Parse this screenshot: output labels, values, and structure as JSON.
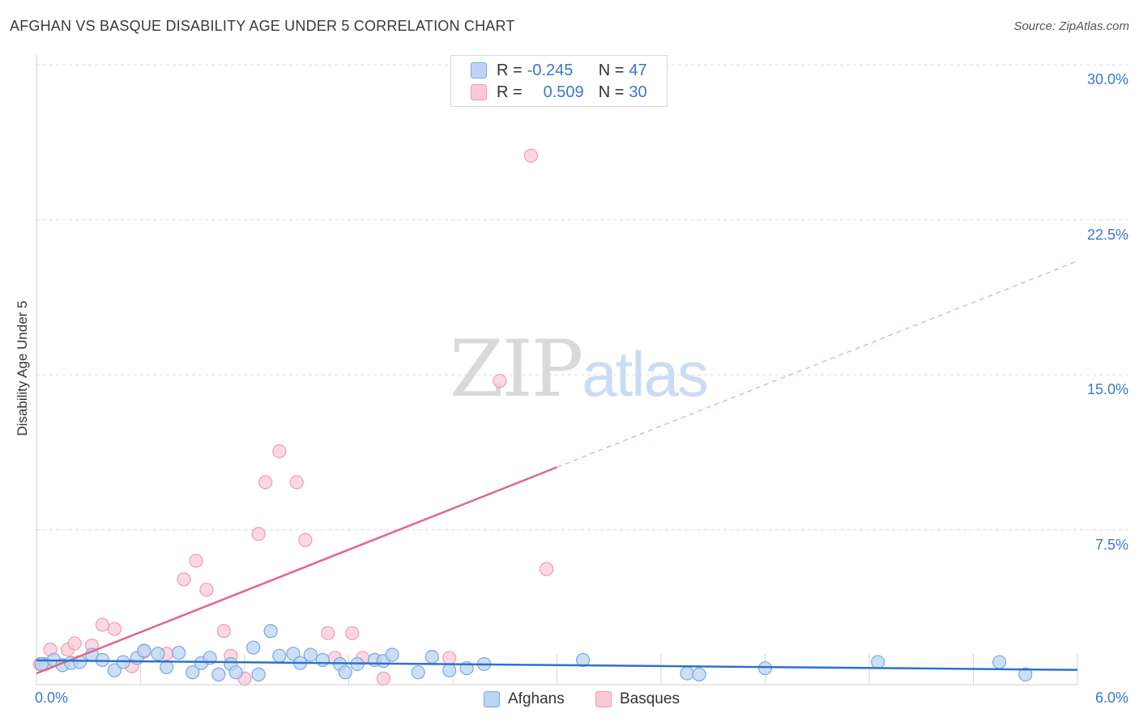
{
  "header": {
    "title": "AFGHAN VS BASQUE DISABILITY AGE UNDER 5 CORRELATION CHART",
    "source": "Source: ZipAtlas.com"
  },
  "legend_top": {
    "rows": [
      {
        "r_label": "R =",
        "r_value": "-0.245",
        "n_label": "N =",
        "n_value": "47"
      },
      {
        "r_label": "R =",
        "r_value": "0.509",
        "n_label": "N =",
        "n_value": "30"
      }
    ]
  },
  "legend_bottom": {
    "items": [
      {
        "label": "Afghans"
      },
      {
        "label": "Basques"
      }
    ]
  },
  "watermark": {
    "zip": "ZIP",
    "atlas": "atlas"
  },
  "colors": {
    "afghans_fill": "#bcd4f4",
    "afghans_stroke": "#7aa7e0",
    "afghans_line": "#2f72c8",
    "basques_fill": "#fbc9d6",
    "basques_stroke": "#ee9ab2",
    "basques_line": "#e06690",
    "tick_text": "#3b78c9"
  },
  "chart_data": {
    "type": "scatter",
    "title": "AFGHAN VS BASQUE DISABILITY AGE UNDER 5 CORRELATION CHART",
    "xlabel": "",
    "ylabel": "Disability Age Under 5",
    "x_tick_labels": [
      "0.0%",
      "6.0%"
    ],
    "y_tick_labels": [
      "7.5%",
      "15.0%",
      "22.5%",
      "30.0%"
    ],
    "xlim": [
      0,
      6
    ],
    "ylim": [
      0,
      30
    ],
    "grid": true,
    "legend_position": "top-center",
    "series": [
      {
        "name": "Afghans",
        "r": -0.245,
        "n": 47,
        "trend": {
          "x0": 0.0,
          "y0": 1.18,
          "x1": 6.0,
          "y1": 0.72,
          "dashed_from": null
        },
        "points": [
          [
            0.05,
            1.0
          ],
          [
            0.1,
            1.2
          ],
          [
            0.15,
            0.95
          ],
          [
            0.2,
            1.05
          ],
          [
            0.25,
            1.1
          ],
          [
            0.32,
            1.45
          ],
          [
            0.38,
            1.2
          ],
          [
            0.45,
            0.7
          ],
          [
            0.5,
            1.1
          ],
          [
            0.58,
            1.3
          ],
          [
            0.62,
            1.65
          ],
          [
            0.7,
            1.5
          ],
          [
            0.75,
            0.85
          ],
          [
            0.82,
            1.55
          ],
          [
            0.9,
            0.6
          ],
          [
            0.95,
            1.05
          ],
          [
            1.0,
            1.3
          ],
          [
            1.05,
            0.5
          ],
          [
            1.12,
            1.0
          ],
          [
            1.15,
            0.6
          ],
          [
            1.25,
            1.8
          ],
          [
            1.28,
            0.5
          ],
          [
            1.35,
            2.6
          ],
          [
            1.4,
            1.4
          ],
          [
            1.48,
            1.5
          ],
          [
            1.52,
            1.05
          ],
          [
            1.58,
            1.45
          ],
          [
            1.65,
            1.2
          ],
          [
            1.75,
            1.0
          ],
          [
            1.78,
            0.6
          ],
          [
            1.85,
            1.0
          ],
          [
            1.95,
            1.2
          ],
          [
            2.0,
            1.15
          ],
          [
            2.05,
            1.45
          ],
          [
            2.2,
            0.6
          ],
          [
            2.28,
            1.35
          ],
          [
            2.38,
            0.7
          ],
          [
            2.48,
            0.8
          ],
          [
            2.58,
            1.0
          ],
          [
            3.15,
            1.2
          ],
          [
            3.75,
            0.55
          ],
          [
            3.82,
            0.5
          ],
          [
            4.2,
            0.8
          ],
          [
            4.85,
            1.1
          ],
          [
            5.55,
            1.1
          ],
          [
            5.7,
            0.5
          ],
          [
            0.03,
            1.0
          ]
        ]
      },
      {
        "name": "Basques",
        "r": 0.509,
        "n": 30,
        "trend": {
          "x0": 0.0,
          "y0": 0.55,
          "x1": 6.0,
          "y1": 20.5,
          "dashed_from": 3.0
        },
        "points": [
          [
            0.02,
            1.0
          ],
          [
            0.08,
            1.7
          ],
          [
            0.18,
            1.7
          ],
          [
            0.22,
            2.0
          ],
          [
            0.32,
            1.9
          ],
          [
            0.38,
            2.9
          ],
          [
            0.45,
            2.7
          ],
          [
            0.55,
            0.9
          ],
          [
            0.62,
            1.6
          ],
          [
            0.75,
            1.5
          ],
          [
            0.85,
            5.1
          ],
          [
            0.92,
            6.0
          ],
          [
            0.98,
            4.6
          ],
          [
            1.08,
            2.6
          ],
          [
            1.12,
            1.4
          ],
          [
            1.2,
            0.3
          ],
          [
            1.28,
            7.3
          ],
          [
            1.32,
            9.8
          ],
          [
            1.4,
            11.3
          ],
          [
            1.5,
            9.8
          ],
          [
            1.55,
            7.0
          ],
          [
            1.68,
            2.5
          ],
          [
            1.72,
            1.3
          ],
          [
            1.82,
            2.5
          ],
          [
            1.88,
            1.3
          ],
          [
            2.0,
            0.3
          ],
          [
            2.38,
            1.3
          ],
          [
            2.67,
            14.7
          ],
          [
            2.85,
            25.6
          ],
          [
            2.94,
            5.6
          ]
        ]
      }
    ]
  }
}
